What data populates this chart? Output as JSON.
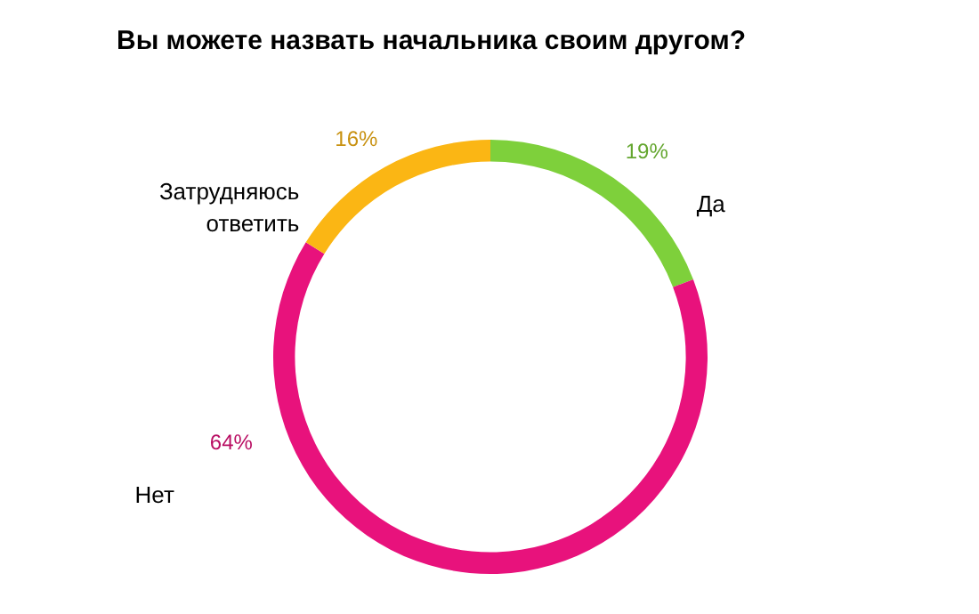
{
  "chart_data": {
    "type": "donut",
    "title": "Вы можете назвать начальника своим другом?",
    "categories": [
      "Да",
      "Нет",
      "Затрудняюсь ответить"
    ],
    "values": [
      19,
      64,
      16
    ],
    "colors": [
      "#7ed03b",
      "#e8127c",
      "#fbb614"
    ],
    "value_labels": [
      "19%",
      "64%",
      "16%"
    ]
  }
}
